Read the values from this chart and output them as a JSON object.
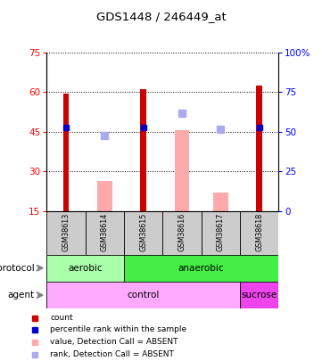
{
  "title": "GDS1448 / 246449_at",
  "samples": [
    "GSM38613",
    "GSM38614",
    "GSM38615",
    "GSM38616",
    "GSM38617",
    "GSM38618"
  ],
  "red_bars": [
    59.5,
    null,
    61.0,
    null,
    null,
    62.5
  ],
  "pink_bars": [
    null,
    26.5,
    null,
    45.5,
    22.0,
    null
  ],
  "blue_squares": [
    46.5,
    null,
    46.5,
    null,
    null,
    46.5
  ],
  "lavender_squares": [
    null,
    43.5,
    null,
    52.0,
    46.0,
    null
  ],
  "ylim_left": [
    15,
    75
  ],
  "ylim_right": [
    0,
    100
  ],
  "yticks_left": [
    15,
    30,
    45,
    60,
    75
  ],
  "yticks_right": [
    0,
    25,
    50,
    75,
    100
  ],
  "color_red": "#cc0000",
  "color_pink": "#ffaaaa",
  "color_blue": "#0000cc",
  "color_lavender": "#aaaaee",
  "color_aerobic": "#aaffaa",
  "color_anaerobic": "#44ee44",
  "color_control": "#ffaaff",
  "color_sucrose": "#ee44ee",
  "color_sample_bg": "#cccccc",
  "legend_items": [
    "count",
    "percentile rank within the sample",
    "value, Detection Call = ABSENT",
    "rank, Detection Call = ABSENT"
  ],
  "legend_colors": [
    "#cc0000",
    "#0000cc",
    "#ffaaaa",
    "#aaaaee"
  ]
}
